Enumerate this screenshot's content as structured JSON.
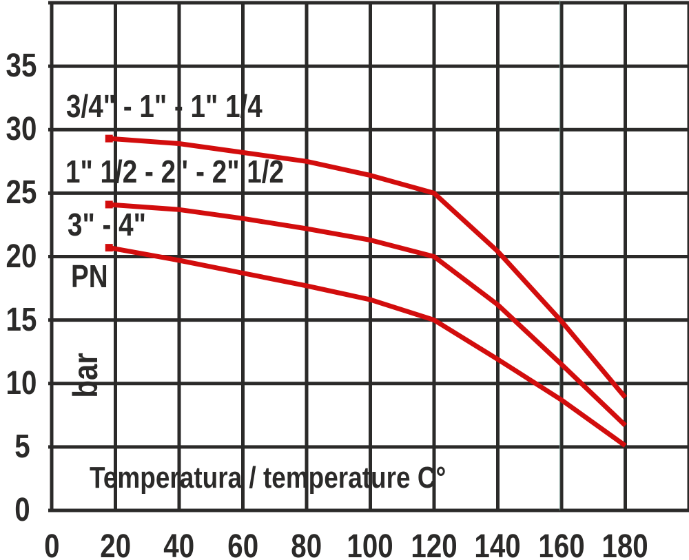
{
  "page": {
    "background": "#ffffff"
  },
  "chart_data": {
    "type": "line",
    "title": "",
    "xlabel": "Temperatura / temperature C°",
    "ylabel": "PN",
    "y_unit": "bar",
    "xlim": [
      0,
      200
    ],
    "ylim": [
      0,
      40
    ],
    "x_ticks": [
      0,
      20,
      40,
      60,
      80,
      100,
      120,
      140,
      160,
      180
    ],
    "y_ticks": [
      35,
      30,
      25,
      20,
      15,
      10,
      5,
      0
    ],
    "grid": true,
    "legend_position": "inline-labels",
    "colors": {
      "curve": "#d20d0d",
      "grid": "#2b2a29",
      "text": "#2b2a29",
      "artifact_line": "#8fbfb2"
    },
    "series": [
      {
        "name": "3/4\" - 1\" - 1\" 1/4",
        "points": [
          [
            18,
            29.3
          ],
          [
            40,
            28.9
          ],
          [
            60,
            28.2
          ],
          [
            80,
            27.5
          ],
          [
            100,
            26.4
          ],
          [
            120,
            25
          ],
          [
            140,
            20.4
          ],
          [
            160,
            14.9
          ],
          [
            180,
            8.9
          ]
        ]
      },
      {
        "name": "1\" 1/2 - 2\" - 2\" 1/2",
        "points": [
          [
            18,
            24.1
          ],
          [
            40,
            23.7
          ],
          [
            60,
            23
          ],
          [
            80,
            22.2
          ],
          [
            100,
            21.3
          ],
          [
            120,
            20
          ],
          [
            140,
            16.2
          ],
          [
            160,
            11.5
          ],
          [
            180,
            6.7
          ]
        ]
      },
      {
        "name": "3\" - 4\"",
        "points": [
          [
            18,
            20.7
          ],
          [
            40,
            19.7
          ],
          [
            60,
            18.7
          ],
          [
            80,
            17.7
          ],
          [
            100,
            16.6
          ],
          [
            120,
            15
          ],
          [
            140,
            11.9
          ],
          [
            160,
            8.7
          ],
          [
            180,
            5.1
          ]
        ]
      }
    ]
  }
}
